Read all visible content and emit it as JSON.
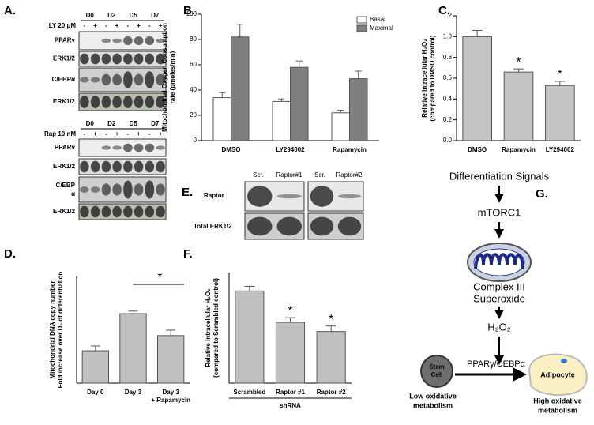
{
  "blots_a": {
    "panel_label": "A.",
    "top": {
      "timepoints": [
        "D0",
        "D2",
        "D5",
        "D7"
      ],
      "treatment": "LY 20 μM",
      "signs": [
        "-",
        "+",
        "-",
        "+",
        "-",
        "+",
        "-",
        "+"
      ],
      "rows": [
        "PPARγ",
        "ERK1/2",
        "C/EBPα",
        "ERK1/2"
      ]
    },
    "bottom": {
      "timepoints": [
        "D0",
        "D2",
        "D5",
        "D7"
      ],
      "treatment": "Rap 10 nM",
      "signs": [
        "-",
        "+",
        "-",
        "+",
        "-",
        "+",
        "-",
        "+"
      ],
      "rows": [
        "PPARγ",
        "ERK1/2",
        [
          "C/EBP",
          "α"
        ],
        "ERK1/2"
      ]
    }
  },
  "chart_data": [
    {
      "panel_label": "B.",
      "type": "bar",
      "y_label": [
        "Mitochondrial Oxygen Consumption",
        "rate (pmoles/min)"
      ],
      "categories": [
        "DMSO",
        "LY294002",
        "Rapamycin"
      ],
      "series": [
        {
          "name": "Basal",
          "color": "#ffffff",
          "values": [
            34,
            31,
            22
          ],
          "errors": [
            4,
            2,
            2
          ]
        },
        {
          "name": "Maximal",
          "color": "#7f7f7f",
          "values": [
            82,
            58,
            49
          ],
          "errors": [
            10,
            5,
            6
          ]
        }
      ],
      "ylim": [
        0,
        100
      ],
      "yticks": [
        0,
        20,
        40,
        60,
        80,
        100
      ],
      "legend": "upper right"
    },
    {
      "panel_label": "C.",
      "type": "bar",
      "y_label": [
        "Relative Intracellular H₂O₂",
        "(compared to DMSO control)"
      ],
      "categories": [
        "DMSO",
        "Rapamycin",
        "LY294002"
      ],
      "series": [
        {
          "color": "#c4c4c4",
          "values": [
            1.0,
            0.66,
            0.53
          ],
          "errors": [
            0.06,
            0.03,
            0.04
          ]
        }
      ],
      "significance": [
        null,
        "*",
        "*"
      ],
      "ylim": [
        0,
        1.2
      ],
      "yticks": [
        {
          "value": 0,
          "label": "0.0"
        },
        0.2,
        0.4,
        0.6,
        0.8,
        {
          "value": 1,
          "label": "1.0"
        },
        1.2
      ]
    },
    {
      "panel_label": "D.",
      "type": "bar",
      "y_label": [
        "Mitochondrial DNA copy number",
        "Fold increase over D₀ of differentiation"
      ],
      "categories": [
        "Day 0",
        "Day 3",
        [
          "Day 3",
          "+ Rapamycin"
        ]
      ],
      "series": [
        {
          "color": "#c0c0c0",
          "values": [
            1.0,
            2.15,
            1.47
          ],
          "errors": [
            0.15,
            0.08,
            0.17
          ]
        }
      ],
      "bracket_label": "*",
      "ylim": [
        0,
        3.3
      ]
    },
    {
      "panel_label": "F.",
      "type": "bar",
      "y_label": [
        "Relative Intracellular H₂O₂",
        "(compared to Scrambled control)"
      ],
      "x_label": "shRNA",
      "categories": [
        "Scrambled",
        "Raptor #1",
        "Raptor #2"
      ],
      "series": [
        {
          "color": "#c0c0c0",
          "values": [
            1.0,
            0.66,
            0.56
          ],
          "errors": [
            0.05,
            0.05,
            0.06
          ]
        }
      ],
      "significance": [
        null,
        "*",
        "*"
      ],
      "ylim": [
        0,
        1.2
      ]
    }
  ],
  "blots_e": {
    "panel_label": "E.",
    "columns": [
      "Scr.",
      "Raptor#1",
      "Scr.",
      "Raptor#2"
    ],
    "rows": [
      "Raptor",
      "Total ERK1/2"
    ]
  },
  "diagram_g": {
    "panel_label": "G.",
    "signal": "Differentiation Signals",
    "kinase": "mTORC1",
    "complex": [
      "Complex III",
      "Superoxide"
    ],
    "oxidant": "H₂O₂",
    "factors": "PPARγ/CEBPα",
    "stem_cell": [
      "Stem",
      "Cell"
    ],
    "adipocyte": "Adipocyte",
    "low": [
      "Low oxidative",
      "metabolism"
    ],
    "high": [
      "High oxidative",
      "metabolism"
    ]
  }
}
